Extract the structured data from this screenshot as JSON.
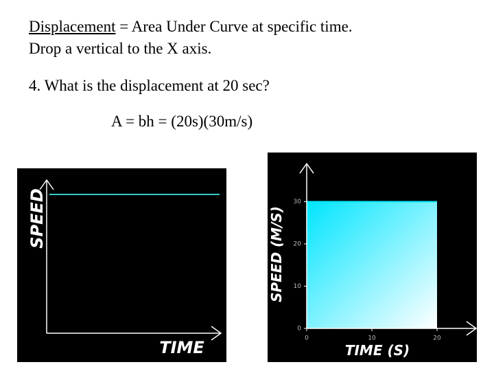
{
  "heading": {
    "term": "Displacement",
    "definition": " = Area Under Curve at specific time.",
    "instruction": "Drop a vertical to the X axis."
  },
  "question": "4. What is the displacement at 20 sec?",
  "answer": "A = bh = (20s)(30m/s)",
  "chart_data": [
    {
      "type": "line",
      "xlabel": "TIME",
      "ylabel": "SPEED",
      "color": "#33cccc"
    },
    {
      "type": "area",
      "xlabel": "TIME (S)",
      "ylabel": "SPEED (M/S)",
      "x": [
        0,
        20
      ],
      "values": [
        30,
        30
      ],
      "color": "#00e5ff",
      "xlim": [
        0,
        26
      ],
      "ylim": [
        0,
        39
      ],
      "xticks": [
        0,
        10,
        20
      ],
      "yticks": [
        0,
        10,
        20,
        30
      ]
    }
  ]
}
